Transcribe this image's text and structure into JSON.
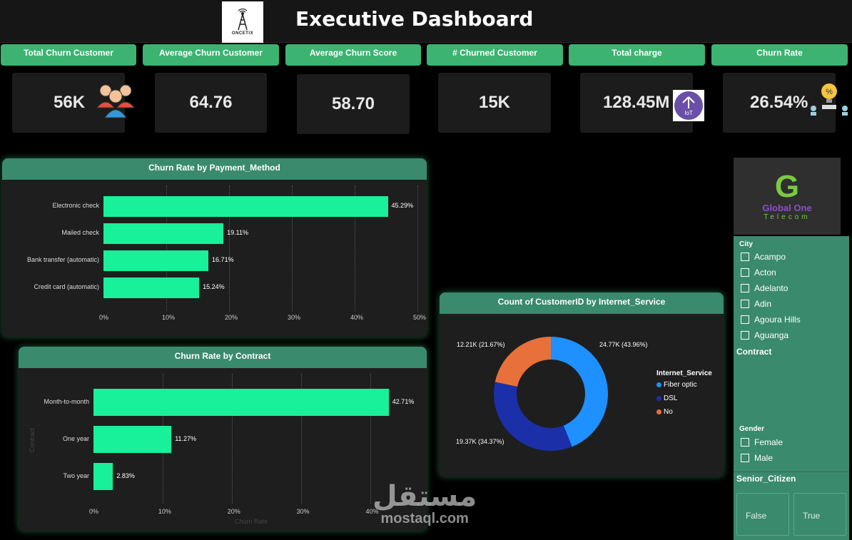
{
  "header": {
    "title": "Executive Dashboard",
    "logo_text": "ONCETIX"
  },
  "kpis": [
    {
      "label": "Total Churn Customer",
      "value": "56K",
      "icon": "people-group-icon"
    },
    {
      "label": "Average Churn Customer",
      "value": "64.76"
    },
    {
      "label": "Average Churn Score",
      "value": "58.70"
    },
    {
      "label": "# Churned Customer",
      "value": "15K"
    },
    {
      "label": "Total charge",
      "value": "128.45M",
      "icon": "iot-upload-icon"
    },
    {
      "label": "Churn Rate",
      "value": "26.54%",
      "icon": "idea-percent-icon"
    }
  ],
  "payment_chart": {
    "title": "Churn Rate by Payment_Method",
    "chart_data": {
      "type": "bar",
      "orientation": "horizontal",
      "categories": [
        "Electronic check",
        "Mailed check",
        "Bank transfer (automatic)",
        "Credit card (automatic)"
      ],
      "values": [
        45.29,
        19.11,
        16.71,
        15.24
      ],
      "value_labels": [
        "45.29%",
        "19.11%",
        "16.71%",
        "15.24%"
      ],
      "ticks": [
        "0%",
        "10%",
        "20%",
        "30%",
        "40%",
        "50%"
      ],
      "xlim": [
        0,
        50
      ],
      "bar_color": "#19f09a"
    }
  },
  "contract_chart": {
    "title": "Churn Rate by Contract",
    "chart_data": {
      "type": "bar",
      "orientation": "horizontal",
      "categories": [
        "Month-to-month",
        "One year",
        "Two year"
      ],
      "values": [
        42.71,
        11.27,
        2.83
      ],
      "value_labels": [
        "42.71%",
        "11.27%",
        "2.83%"
      ],
      "ticks": [
        "0%",
        "10%",
        "20%",
        "30%",
        "40%"
      ],
      "xlim": [
        0,
        45
      ],
      "xlabel": "Churn Rate",
      "ylabel": "Contract",
      "bar_color": "#19f09a"
    }
  },
  "internet_chart": {
    "title": "Count of CustomerID by Internet_Service",
    "chart_data": {
      "type": "pie",
      "variant": "donut",
      "legend_title": "Internet_Service",
      "categories": [
        "Fiber optic",
        "DSL",
        "No"
      ],
      "values": [
        24.77,
        19.37,
        12.21
      ],
      "value_labels": [
        "24.77K (43.96%)",
        "19.37K (34.37%)",
        "12.21K (21.67%)"
      ],
      "colors": [
        "#1e90ff",
        "#1a2fa8",
        "#e8703a"
      ]
    }
  },
  "brand": {
    "letter": "G",
    "name": "Global One",
    "sub": "Telecom"
  },
  "slicers": {
    "city": {
      "title": "City",
      "items": [
        "Acampo",
        "Acton",
        "Adelanto",
        "Adin",
        "Agoura Hills",
        "Aguanga"
      ]
    },
    "contract": {
      "title": "Contract"
    },
    "gender": {
      "title": "Gender",
      "items": [
        "Female",
        "Male"
      ]
    },
    "senior": {
      "title": "Senior_Citizen",
      "options": [
        "False",
        "True"
      ]
    }
  },
  "watermark": {
    "arabic": "مستقل",
    "latin": "mostaql.com"
  }
}
